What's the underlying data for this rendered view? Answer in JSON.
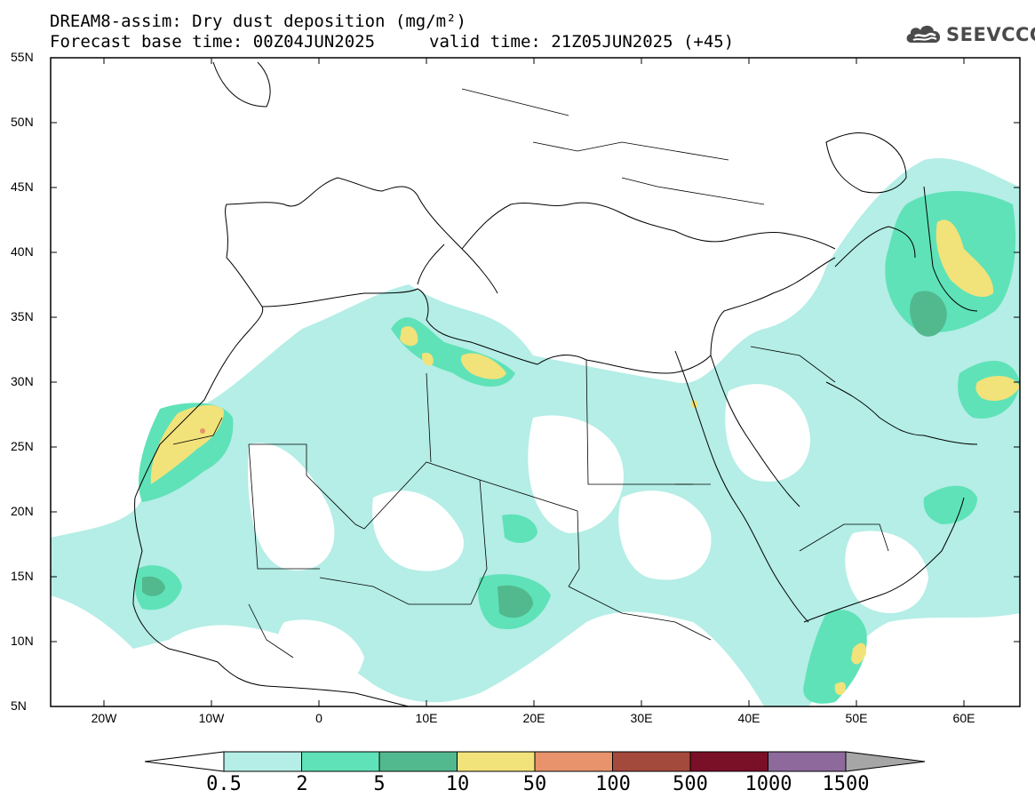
{
  "title_line1": "DREAM8-assim: Dry dust deposition (mg/m²)",
  "title_line2a": "Forecast base time: 00Z04JUN2025",
  "title_line2b": "valid time: 21Z05JUN2025 (+45)",
  "logo": {
    "text": "SEEVCCC",
    "icon": "cloud-icon"
  },
  "map": {
    "lat_labels": [
      "55N",
      "50N",
      "45N",
      "40N",
      "35N",
      "30N",
      "25N",
      "20N",
      "15N",
      "10N",
      "5N"
    ],
    "lon_labels": [
      "20W",
      "10W",
      "0",
      "10E",
      "20E",
      "30E",
      "40E",
      "50E",
      "60E"
    ],
    "lat_range": [
      5,
      55
    ],
    "lon_range": [
      -25,
      65
    ]
  },
  "colorbar": {
    "labels": [
      "0.5",
      "2",
      "5",
      "10",
      "50",
      "100",
      "500",
      "1000",
      "1500"
    ],
    "colors": [
      "#b4eee6",
      "#5fe2b8",
      "#52b98e",
      "#f2e27a",
      "#e8936c",
      "#a44a3c",
      "#7a0f28",
      "#8e6a9c",
      "#a6a6a6"
    ],
    "low_color": "#ffffff",
    "high_color": "#a6a6a6"
  }
}
